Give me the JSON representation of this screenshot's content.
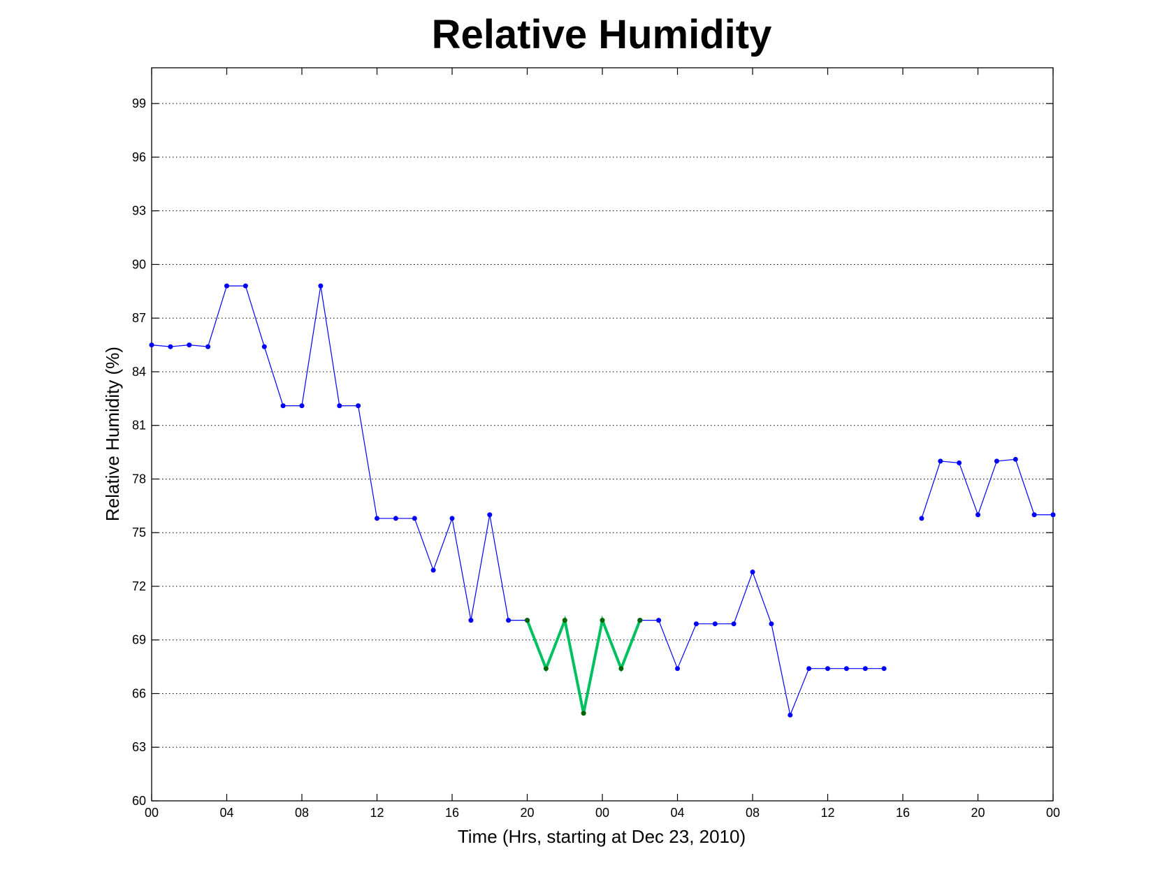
{
  "chart_data": {
    "type": "line",
    "title": "Relative Humidity",
    "xlabel": "Time (Hrs, starting at Dec 23, 2010)",
    "ylabel": "Relative Humidity (%)",
    "xlim": [
      0,
      48
    ],
    "ylim": [
      60,
      101
    ],
    "xticks": [
      0,
      4,
      8,
      12,
      16,
      20,
      24,
      28,
      32,
      36,
      40,
      44,
      48
    ],
    "xtick_labels": [
      "00",
      "04",
      "08",
      "12",
      "16",
      "20",
      "00",
      "04",
      "08",
      "12",
      "16",
      "20",
      "00"
    ],
    "yticks": [
      60,
      63,
      66,
      69,
      72,
      75,
      78,
      81,
      84,
      87,
      90,
      93,
      96,
      99
    ],
    "ytick_labels": [
      "60",
      "63",
      "66",
      "69",
      "72",
      "75",
      "78",
      "81",
      "84",
      "87",
      "90",
      "93",
      "96",
      "99"
    ],
    "grid": "horizontal-dotted",
    "series": [
      {
        "color": "#0000ff",
        "segments": [
          [
            [
              0,
              85.5
            ],
            [
              1,
              85.4
            ],
            [
              2,
              85.5
            ],
            [
              3,
              85.4
            ],
            [
              4,
              88.8
            ],
            [
              5,
              88.8
            ],
            [
              6,
              85.4
            ],
            [
              7,
              82.1
            ],
            [
              8,
              82.1
            ],
            [
              9,
              88.8
            ],
            [
              10,
              82.1
            ],
            [
              11,
              82.1
            ],
            [
              12,
              75.8
            ],
            [
              13,
              75.8
            ],
            [
              14,
              75.8
            ],
            [
              15,
              72.9
            ],
            [
              16,
              75.8
            ],
            [
              17,
              70.1
            ],
            [
              18,
              76.0
            ],
            [
              19,
              70.1
            ],
            [
              20,
              70.1
            ]
          ],
          [
            [
              26,
              70.1
            ],
            [
              27,
              70.1
            ],
            [
              28,
              67.4
            ],
            [
              29,
              69.9
            ],
            [
              30,
              69.9
            ],
            [
              31,
              69.9
            ],
            [
              32,
              72.8
            ],
            [
              33,
              69.9
            ],
            [
              34,
              64.8
            ],
            [
              35,
              67.4
            ],
            [
              36,
              67.4
            ],
            [
              37,
              67.4
            ],
            [
              38,
              67.4
            ],
            [
              39,
              67.4
            ]
          ],
          [
            [
              41,
              75.8
            ],
            [
              42,
              79.0
            ],
            [
              43,
              78.9
            ],
            [
              44,
              76.0
            ],
            [
              45,
              79.0
            ],
            [
              46,
              79.1
            ],
            [
              47,
              76.0
            ],
            [
              48,
              76.0
            ]
          ]
        ]
      },
      {
        "color": "#00c060",
        "marker_color": "#006400",
        "segments": [
          [
            [
              20,
              70.1
            ],
            [
              21,
              67.4
            ],
            [
              22,
              70.1
            ],
            [
              23,
              64.9
            ],
            [
              24,
              70.1
            ],
            [
              25,
              67.4
            ],
            [
              26,
              70.1
            ]
          ]
        ]
      }
    ]
  }
}
